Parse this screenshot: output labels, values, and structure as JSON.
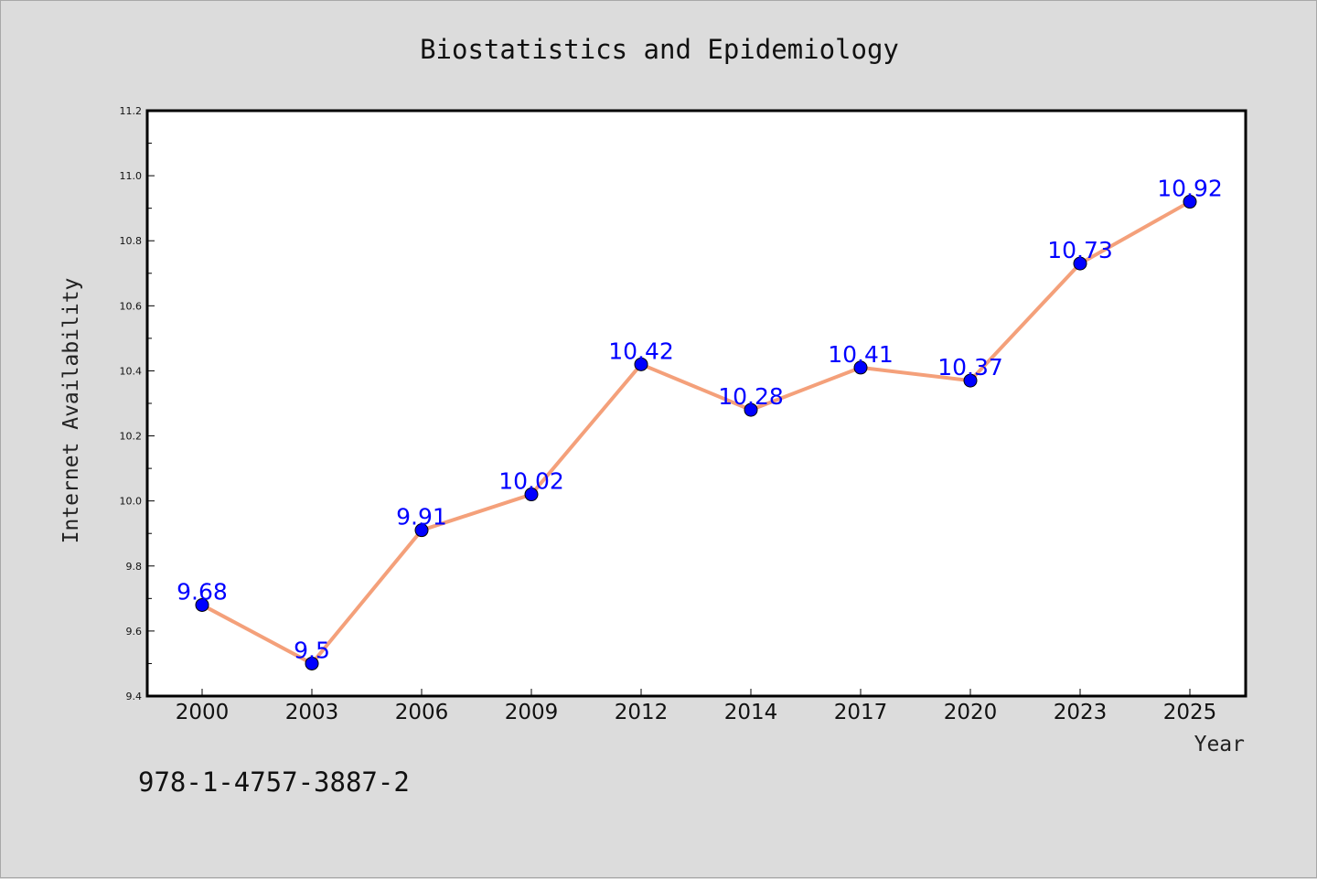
{
  "chart_data": {
    "type": "line",
    "title": "Biostatistics and Epidemiology",
    "xlabel": "Year",
    "ylabel": "Internet Availability",
    "categories": [
      "2000",
      "2003",
      "2006",
      "2009",
      "2012",
      "2014",
      "2017",
      "2020",
      "2023",
      "2025"
    ],
    "series": [
      {
        "values": [
          9.68,
          9.5,
          9.91,
          10.02,
          10.42,
          10.28,
          10.41,
          10.37,
          10.73,
          10.92
        ],
        "labels": [
          "9.68",
          "9.5",
          "9.91",
          "10.02",
          "10.42",
          "10.28",
          "10.41",
          "10.37",
          "10.73",
          "10.92"
        ],
        "line_color": "#f4a07a",
        "marker_color": "#0000ff"
      }
    ],
    "ylim": [
      9.4,
      11.2
    ],
    "yticks": [
      "9.4",
      "9.6",
      "9.8",
      "10.0",
      "10.2",
      "10.4",
      "10.6",
      "10.8",
      "11.0",
      "11.2"
    ],
    "grid": false,
    "legend": "none"
  },
  "footer": {
    "isbn": "978-1-4757-3887-2"
  },
  "colors": {
    "background": "#dcdcdc",
    "plot_background": "#ffffff"
  }
}
